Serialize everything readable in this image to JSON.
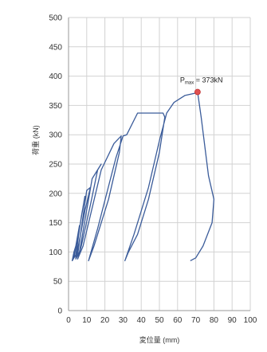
{
  "chart_data": {
    "type": "line",
    "xlabel": "変位量 (mm)",
    "ylabel": "荷重 (kN)",
    "xlim": [
      0,
      100
    ],
    "ylim": [
      0,
      500
    ],
    "x_ticks": [
      0,
      10,
      20,
      30,
      40,
      50,
      60,
      70,
      80,
      90,
      100
    ],
    "y_ticks": [
      0,
      50,
      100,
      150,
      200,
      250,
      300,
      350,
      400,
      450,
      500
    ],
    "grid": true,
    "series": [
      {
        "color": "#3b5c9a",
        "points": [
          [
            2,
            85
          ],
          [
            3,
            100
          ],
          [
            4,
            110
          ],
          [
            3,
            95
          ],
          [
            2,
            85
          ],
          [
            3,
            90
          ],
          [
            5,
            125
          ],
          [
            6,
            145
          ],
          [
            4,
            110
          ],
          [
            3,
            90
          ],
          [
            4,
            95
          ],
          [
            7,
            160
          ],
          [
            9,
            195
          ],
          [
            6,
            140
          ],
          [
            4,
            90
          ],
          [
            5,
            95
          ],
          [
            10,
            205
          ],
          [
            12,
            210
          ],
          [
            9,
            170
          ],
          [
            6,
            120
          ],
          [
            4,
            88
          ],
          [
            6,
            100
          ],
          [
            13,
            225
          ],
          [
            18,
            250
          ],
          [
            16,
            240
          ],
          [
            12,
            180
          ],
          [
            7,
            110
          ],
          [
            5,
            88
          ],
          [
            8,
            110
          ],
          [
            18,
            240
          ],
          [
            25,
            285
          ],
          [
            29,
            298
          ],
          [
            28,
            270
          ],
          [
            22,
            190
          ],
          [
            14,
            110
          ],
          [
            11,
            85
          ],
          [
            16,
            140
          ],
          [
            26,
            260
          ],
          [
            30,
            298
          ],
          [
            32,
            300
          ],
          [
            38,
            337
          ],
          [
            52,
            337
          ],
          [
            53,
            330
          ],
          [
            50,
            270
          ],
          [
            44,
            190
          ],
          [
            38,
            130
          ],
          [
            33,
            100
          ],
          [
            31,
            85
          ],
          [
            36,
            130
          ],
          [
            44,
            210
          ],
          [
            50,
            290
          ],
          [
            54,
            337
          ],
          [
            58,
            355
          ],
          [
            64,
            367
          ],
          [
            70,
            371
          ],
          [
            71,
            373
          ],
          [
            73,
            330
          ],
          [
            75,
            280
          ],
          [
            77,
            230
          ],
          [
            80,
            190
          ],
          [
            79,
            150
          ],
          [
            74,
            110
          ],
          [
            70,
            90
          ],
          [
            67,
            85
          ]
        ]
      }
    ],
    "peak": {
      "x": 71,
      "y": 373
    },
    "annotation": {
      "text": "P",
      "subscript": "max",
      "suffix": " = 373kN"
    }
  }
}
